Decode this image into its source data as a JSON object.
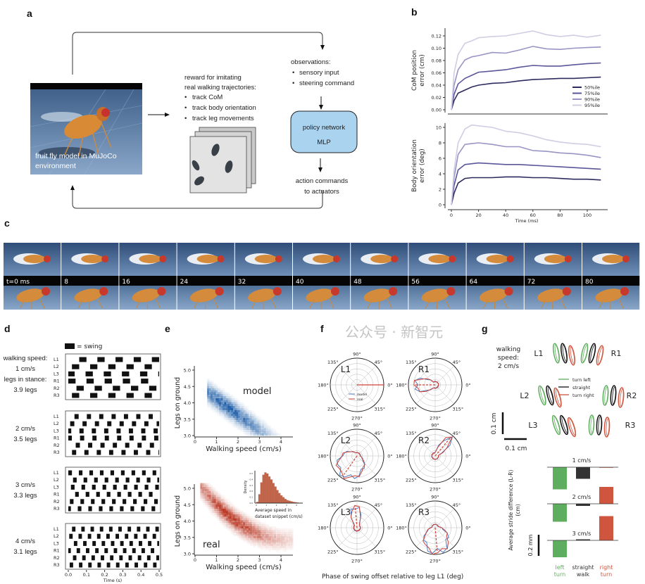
{
  "panel_labels": {
    "a": "a",
    "b": "b",
    "c": "c",
    "d": "d",
    "e": "e",
    "f": "f",
    "g": "g"
  },
  "panel_a": {
    "fly_caption_1": "fruit fly model in MuJoCo",
    "fly_caption_2": "environment",
    "reward_title_1": "reward for imitating",
    "reward_title_2": "real walking trajectories:",
    "reward_items": [
      "track CoM",
      "track body orientation",
      "track leg movements"
    ],
    "obs_title": "observations:",
    "obs_items": [
      "sensory input",
      "steering command"
    ],
    "policy_line1": "policy network",
    "policy_line2": "MLP",
    "action_line1": "action commands",
    "action_line2": "to actuators",
    "policy_color": "#a9d3ef"
  },
  "chart_data": [
    {
      "id": "b-top",
      "type": "line",
      "xlabel": "Time (ms)",
      "ylabel_1": "CoM position",
      "ylabel_2": "error (cm)",
      "xlim": [
        0,
        110
      ],
      "ylim": [
        0,
        0.13
      ],
      "xticks": [
        0,
        20,
        40,
        60,
        80,
        100
      ],
      "yticks": [
        "0.00",
        "0.02",
        "0.04",
        "0.06",
        "0.08",
        "0.10",
        "0.12"
      ],
      "legend_position": "bottom-right",
      "x": [
        0,
        2,
        5,
        10,
        15,
        20,
        30,
        40,
        50,
        60,
        70,
        80,
        90,
        100,
        110
      ],
      "series": [
        {
          "name": "50%ile",
          "color": "#2d2a5e",
          "values": [
            0,
            0.015,
            0.027,
            0.032,
            0.037,
            0.04,
            0.043,
            0.044,
            0.047,
            0.049,
            0.05,
            0.051,
            0.051,
            0.052,
            0.053
          ]
        },
        {
          "name": "75%ile",
          "color": "#5a5699",
          "values": [
            0,
            0.025,
            0.042,
            0.051,
            0.056,
            0.061,
            0.063,
            0.065,
            0.069,
            0.072,
            0.071,
            0.071,
            0.073,
            0.075,
            0.076
          ]
        },
        {
          "name": "90%ile",
          "color": "#9894c4",
          "values": [
            0,
            0.04,
            0.065,
            0.081,
            0.086,
            0.088,
            0.093,
            0.092,
            0.097,
            0.103,
            0.099,
            0.098,
            0.1,
            0.101,
            0.102
          ]
        },
        {
          "name": "95%ile",
          "color": "#cfcde3",
          "values": [
            0,
            0.06,
            0.09,
            0.108,
            0.112,
            0.117,
            0.119,
            0.12,
            0.124,
            0.128,
            0.122,
            0.119,
            0.121,
            0.118,
            0.121
          ]
        }
      ]
    },
    {
      "id": "b-bottom",
      "type": "line",
      "xlabel": "Time (ms)",
      "ylabel_1": "Body orientation",
      "ylabel_2": "error (deg)",
      "xlim": [
        0,
        110
      ],
      "ylim": [
        0,
        11
      ],
      "xticks": [
        0,
        20,
        40,
        60,
        80,
        100
      ],
      "yticks": [
        "0",
        "2",
        "4",
        "6",
        "8",
        "10"
      ],
      "x": [
        0,
        2,
        5,
        10,
        15,
        20,
        30,
        40,
        50,
        60,
        70,
        80,
        90,
        100,
        110
      ],
      "series": [
        {
          "name": "50%ile",
          "color": "#2d2a5e",
          "values": [
            0,
            1.5,
            2.8,
            3.4,
            3.5,
            3.5,
            3.5,
            3.6,
            3.6,
            3.5,
            3.5,
            3.4,
            3.3,
            3.3,
            3.2
          ]
        },
        {
          "name": "75%ile",
          "color": "#5a5699",
          "values": [
            0,
            2.5,
            4.5,
            5.2,
            5.3,
            5.4,
            5.3,
            5.2,
            5.2,
            5.1,
            5.0,
            4.9,
            4.8,
            4.7,
            4.6
          ]
        },
        {
          "name": "90%ile",
          "color": "#9894c4",
          "values": [
            0,
            3.5,
            6.5,
            7.8,
            7.9,
            8.0,
            7.8,
            7.5,
            7.5,
            7.0,
            6.9,
            6.7,
            6.6,
            6.4,
            6.1
          ]
        },
        {
          "name": "95%ile",
          "color": "#cfcde3",
          "values": [
            0,
            4.5,
            8.0,
            9.8,
            10.3,
            10.2,
            10.0,
            9.5,
            9.3,
            8.9,
            8.4,
            8.1,
            7.9,
            7.8,
            7.5
          ]
        }
      ]
    },
    {
      "id": "d-gait",
      "type": "raster",
      "xlabel": "Time (s)",
      "xlim": [
        0,
        0.5
      ],
      "xticks": [
        "0.0",
        "0.1",
        "0.2",
        "0.3",
        "0.4",
        "0.5"
      ],
      "legend": "= swing",
      "legs": [
        "L1",
        "L2",
        "L3",
        "R1",
        "R2",
        "R3"
      ],
      "panels": [
        {
          "speed": "1 cm/s",
          "stance": "3.9 legs",
          "speed_prefix": "walking speed:",
          "stance_prefix": "legs in stance:",
          "period_s": 0.1,
          "swing_s": 0.04,
          "phase": [
            0.6,
            0.2,
            0.95,
            0.0,
            0.45,
            0.2
          ]
        },
        {
          "speed": "2 cm/s",
          "stance": "3.5 legs",
          "period_s": 0.068,
          "swing_s": 0.023,
          "phase": [
            0.5,
            0.15,
            0.9,
            0.95,
            0.6,
            0.3
          ]
        },
        {
          "speed": "3 cm/s",
          "stance": "3.3 legs",
          "period_s": 0.058,
          "swing_s": 0.02,
          "phase": [
            0.0,
            0.45,
            0.25,
            0.65,
            0.15,
            0.9
          ]
        },
        {
          "speed": "4 cm/s",
          "stance": "3.1 legs",
          "period_s": 0.051,
          "swing_s": 0.019,
          "phase": [
            0.4,
            0.1,
            0.6,
            0.9,
            0.5,
            0.15
          ]
        }
      ]
    },
    {
      "id": "e-model",
      "type": "heatmap",
      "label": "model",
      "color": "#1f5fa8",
      "xlabel": "Walking speed (cm/s)",
      "ylabel": "Legs on ground",
      "xlim": [
        0,
        4.5
      ],
      "ylim": [
        3.0,
        5.1
      ],
      "xticks": [
        "0",
        "1",
        "2",
        "3",
        "4"
      ],
      "yticks": [
        "3.0",
        "3.5",
        "4.0",
        "4.5",
        "5.0"
      ],
      "ridge": {
        "intercept": 4.55,
        "slope": -0.48,
        "speed_range": [
          0.5,
          4.0
        ],
        "peak_speed": 1.5
      }
    },
    {
      "id": "e-real",
      "type": "heatmap",
      "label": "real",
      "color": "#b8321e",
      "xlabel": "Walking speed (cm/s)",
      "ylabel": "Legs on ground",
      "xlim": [
        0,
        4.5
      ],
      "ylim": [
        3.0,
        5.1
      ],
      "xticks": [
        "0",
        "1",
        "2",
        "3",
        "4"
      ],
      "yticks": [
        "3.0",
        "3.5",
        "4.0",
        "4.5",
        "5.0"
      ],
      "ridge": {
        "intercept": 5.2,
        "slope": -0.85,
        "curv": 0.1,
        "speed_range": [
          0.2,
          4.5
        ],
        "peak_speed": 1.7
      }
    },
    {
      "id": "e-inset",
      "type": "bar",
      "color": "#c0644a",
      "xlabel_1": "Average speed in",
      "xlabel_2": "dataset snippet (cm/s)",
      "ylabel": "Density",
      "xlim": [
        0,
        4.5
      ],
      "ylim": [
        0,
        0.55
      ],
      "xticks": [
        "0",
        "1",
        "2",
        "3",
        "4"
      ],
      "yticks": [
        "0.0",
        "0.1",
        "0.2",
        "0.3",
        "0.4",
        "0.5"
      ],
      "bin_width": 0.2,
      "values": [
        0.02,
        0.15,
        0.35,
        0.48,
        0.52,
        0.5,
        0.45,
        0.4,
        0.34,
        0.28,
        0.22,
        0.17,
        0.13,
        0.1,
        0.07,
        0.05,
        0.04,
        0.03,
        0.02,
        0.015,
        0.01,
        0.005
      ]
    },
    {
      "id": "f-polar",
      "type": "polar",
      "caption": "Phase of swing offset  relative to leg L1 (deg)",
      "angle_labels": [
        "0°",
        "45°",
        "90°",
        "135°",
        "180°",
        "225°",
        "270°",
        "315°"
      ],
      "legend": [
        {
          "name": "model",
          "color": "#4a7fc1"
        },
        {
          "name": "real",
          "color": "#d0423a"
        }
      ],
      "legs": [
        {
          "name": "L1",
          "mean_deg": 0,
          "spread_deg": 1,
          "magnitude": 1.0
        },
        {
          "name": "R1",
          "mean_deg": 180,
          "spread_deg": 25,
          "magnitude": 0.75
        },
        {
          "name": "L2",
          "mean_deg": 235,
          "spread_deg": 55,
          "magnitude": 0.85
        },
        {
          "name": "R2",
          "mean_deg": 50,
          "spread_deg": 12,
          "magnitude": 0.85
        },
        {
          "name": "L3",
          "mean_deg": 95,
          "spread_deg": 15,
          "magnitude": 0.8
        },
        {
          "name": "R3",
          "mean_deg": 275,
          "spread_deg": 45,
          "magnitude": 0.9
        }
      ]
    },
    {
      "id": "g-stride",
      "type": "bar",
      "ylabel_1": "Average stride difference (L-R)",
      "ylabel_2": "(cm)",
      "scale_label": "0.2 mm",
      "categories": [
        {
          "line1": "left",
          "line2": "turn",
          "color": "#5fae5f"
        },
        {
          "line1": "straight",
          "line2": "walk",
          "color": "#333333"
        },
        {
          "line1": "right",
          "line2": "turn",
          "color": "#d0553f"
        }
      ],
      "unit": "mm",
      "groups": [
        {
          "name": "1 cm/s",
          "values": [
            -0.21,
            -0.11,
            0.0
          ]
        },
        {
          "name": "2 cm/s",
          "values": [
            -0.17,
            -0.02,
            0.16
          ]
        },
        {
          "name": "3 cm/s",
          "values": [
            -0.16,
            0.01,
            0.23
          ]
        }
      ]
    }
  ],
  "panel_c": {
    "frames": [
      "t=0 ms",
      "8",
      "16",
      "24",
      "32",
      "40",
      "48",
      "56",
      "64",
      "72",
      "80"
    ]
  },
  "panel_g": {
    "speed_1": "walking",
    "speed_2": "speed:",
    "speed_3": "2 cm/s",
    "legs": [
      "L1",
      "R1",
      "L2",
      "R2",
      "L3",
      "R3"
    ],
    "legend": [
      {
        "name": "turn left",
        "color": "#5fae5f"
      },
      {
        "name": "straight",
        "color": "#111111"
      },
      {
        "name": "turn right",
        "color": "#d0553f"
      }
    ],
    "scale_v": "0.1 cm",
    "scale_h": "0.1 cm"
  },
  "watermark": "公众号 · 新智元"
}
